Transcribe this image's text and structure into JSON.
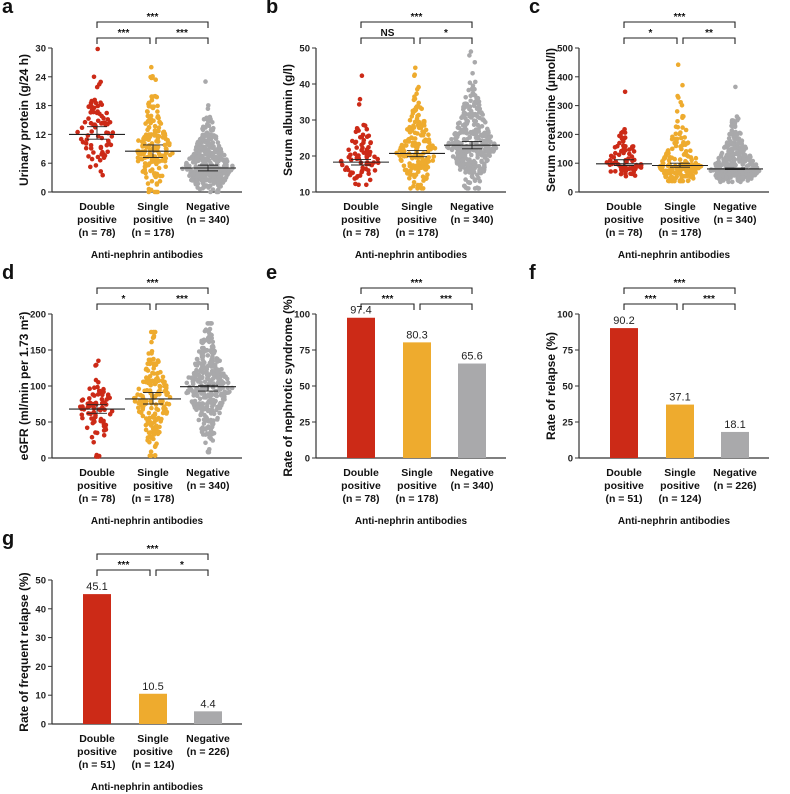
{
  "colors": {
    "double": "#cc2a17",
    "single": "#eeab2e",
    "negative": "#a9a9ab",
    "axis": "#333333"
  },
  "chart_data": [
    {
      "id": "a",
      "panel_label": "a",
      "type": "scatter",
      "ylabel": "Urinary protein (g/24 h)",
      "xlabel": "Anti-nephrin antibodies",
      "ylim": [
        0,
        30
      ],
      "yticks": [
        0,
        6,
        12,
        18,
        24,
        30
      ],
      "categories": [
        [
          "Double",
          "positive",
          "(n = 78)"
        ],
        [
          "Single",
          "positive",
          "(n = 178)"
        ],
        [
          "Negative",
          "(n = 340)"
        ]
      ],
      "n": [
        78,
        178,
        340
      ],
      "medians": [
        12.0,
        8.5,
        5.0
      ],
      "ci": [
        [
          11.0,
          13.6
        ],
        [
          7.2,
          9.8
        ],
        [
          4.4,
          5.6
        ]
      ],
      "ranges": [
        [
          3.5,
          29.8
        ],
        [
          0,
          26
        ],
        [
          0,
          23
        ]
      ],
      "brackets": [
        {
          "from": 0,
          "to": 2,
          "label": "***"
        },
        {
          "from": 0,
          "to": 1,
          "label": "***"
        },
        {
          "from": 1,
          "to": 2,
          "label": "***"
        }
      ]
    },
    {
      "id": "b",
      "panel_label": "b",
      "type": "scatter",
      "ylabel": "Serum albumin (g/l)",
      "xlabel": "Anti-nephrin antibodies",
      "ylim": [
        10,
        50
      ],
      "yticks": [
        10,
        20,
        30,
        40,
        50
      ],
      "categories": [
        [
          "Double",
          "positive",
          "(n = 78)"
        ],
        [
          "Single",
          "positive",
          "(n = 178)"
        ],
        [
          "Negative",
          "(n = 340)"
        ]
      ],
      "n": [
        78,
        178,
        340
      ],
      "medians": [
        18.3,
        20.7,
        23.0
      ],
      "ci": [
        [
          17.5,
          19.0
        ],
        [
          19.8,
          21.5
        ],
        [
          22.0,
          24.0
        ]
      ],
      "ranges": [
        [
          12,
          42.3
        ],
        [
          11,
          44.5
        ],
        [
          11,
          49
        ]
      ],
      "brackets": [
        {
          "from": 0,
          "to": 2,
          "label": "***"
        },
        {
          "from": 0,
          "to": 1,
          "label": "NS"
        },
        {
          "from": 1,
          "to": 2,
          "label": "*"
        }
      ]
    },
    {
      "id": "c",
      "panel_label": "c",
      "type": "scatter",
      "ylabel": "Serum creatinine (μmol/l)",
      "xlabel": "Anti-nephrin antibodies",
      "ylim": [
        0,
        500
      ],
      "yticks": [
        0,
        100,
        200,
        300,
        400,
        500
      ],
      "categories": [
        [
          "Double",
          "positive",
          "(n = 78)"
        ],
        [
          "Single",
          "positive",
          "(n = 178)"
        ],
        [
          "Negative",
          "(n = 340)"
        ]
      ],
      "n": [
        78,
        178,
        340
      ],
      "medians": [
        98,
        92,
        80
      ],
      "ci": [
        [
          92,
          112
        ],
        [
          86,
          100
        ],
        [
          78,
          83
        ]
      ],
      "ranges": [
        [
          55,
          348
        ],
        [
          38,
          442
        ],
        [
          35,
          365
        ]
      ],
      "brackets": [
        {
          "from": 0,
          "to": 2,
          "label": "***"
        },
        {
          "from": 0,
          "to": 1,
          "label": "*"
        },
        {
          "from": 1,
          "to": 2,
          "label": "**"
        }
      ]
    },
    {
      "id": "d",
      "panel_label": "d",
      "type": "scatter",
      "ylabel": "eGFR (ml/min per 1.73 m²)",
      "xlabel": "Anti-nephrin antibodies",
      "ylim": [
        0,
        200
      ],
      "yticks": [
        0,
        50,
        100,
        150,
        200
      ],
      "categories": [
        [
          "Double",
          "positive",
          "(n = 78)"
        ],
        [
          "Single",
          "positive",
          "(n = 178)"
        ],
        [
          "Negative",
          "(n = 340)"
        ]
      ],
      "n": [
        78,
        178,
        340
      ],
      "medians": [
        68,
        82,
        99
      ],
      "ci": [
        [
          62,
          74
        ],
        [
          75,
          91
        ],
        [
          93,
          101
        ]
      ],
      "ranges": [
        [
          2,
          135
        ],
        [
          3,
          175
        ],
        [
          8,
          187
        ]
      ],
      "brackets": [
        {
          "from": 0,
          "to": 2,
          "label": "***"
        },
        {
          "from": 0,
          "to": 1,
          "label": "*"
        },
        {
          "from": 1,
          "to": 2,
          "label": "***"
        }
      ]
    },
    {
      "id": "e",
      "panel_label": "e",
      "type": "bar",
      "ylabel": "Rate of nephrotic syndrome (%)",
      "xlabel": "Anti-nephrin antibodies",
      "ylim": [
        0,
        100
      ],
      "yticks": [
        0,
        25,
        50,
        75,
        100
      ],
      "categories": [
        [
          "Double",
          "positive",
          "(n = 78)"
        ],
        [
          "Single",
          "positive",
          "(n = 178)"
        ],
        [
          "Negative",
          "(n = 340)"
        ]
      ],
      "values": [
        97.4,
        80.3,
        65.6
      ],
      "value_labels": [
        "97.4",
        "80.3",
        "65.6"
      ],
      "brackets": [
        {
          "from": 0,
          "to": 2,
          "label": "***"
        },
        {
          "from": 0,
          "to": 1,
          "label": "***"
        },
        {
          "from": 1,
          "to": 2,
          "label": "***"
        }
      ]
    },
    {
      "id": "f",
      "panel_label": "f",
      "type": "bar",
      "ylabel": "Rate of relapse (%)",
      "xlabel": "Anti-nephrin antibodies",
      "ylim": [
        0,
        100
      ],
      "yticks": [
        0,
        25,
        50,
        75,
        100
      ],
      "categories": [
        [
          "Double",
          "positive",
          "(n = 51)"
        ],
        [
          "Single",
          "positive",
          "(n = 124)"
        ],
        [
          "Negative",
          "(n = 226)"
        ]
      ],
      "values": [
        90.2,
        37.1,
        18.1
      ],
      "value_labels": [
        "90.2",
        "37.1",
        "18.1"
      ],
      "brackets": [
        {
          "from": 0,
          "to": 2,
          "label": "***"
        },
        {
          "from": 0,
          "to": 1,
          "label": "***"
        },
        {
          "from": 1,
          "to": 2,
          "label": "***"
        }
      ]
    },
    {
      "id": "g",
      "panel_label": "g",
      "type": "bar",
      "ylabel": "Rate of frequent relapse (%)",
      "xlabel": "Anti-nephrin antibodies",
      "ylim": [
        0,
        50
      ],
      "yticks": [
        0,
        10,
        20,
        30,
        40,
        50
      ],
      "categories": [
        [
          "Double",
          "positive",
          "(n = 51)"
        ],
        [
          "Single",
          "positive",
          "(n = 124)"
        ],
        [
          "Negative",
          "(n = 226)"
        ]
      ],
      "values": [
        45.1,
        10.5,
        4.4
      ],
      "value_labels": [
        "45.1",
        "10.5",
        "4.4"
      ],
      "brackets": [
        {
          "from": 0,
          "to": 2,
          "label": "***"
        },
        {
          "from": 0,
          "to": 1,
          "label": "***"
        },
        {
          "from": 1,
          "to": 2,
          "label": "*"
        }
      ]
    }
  ]
}
